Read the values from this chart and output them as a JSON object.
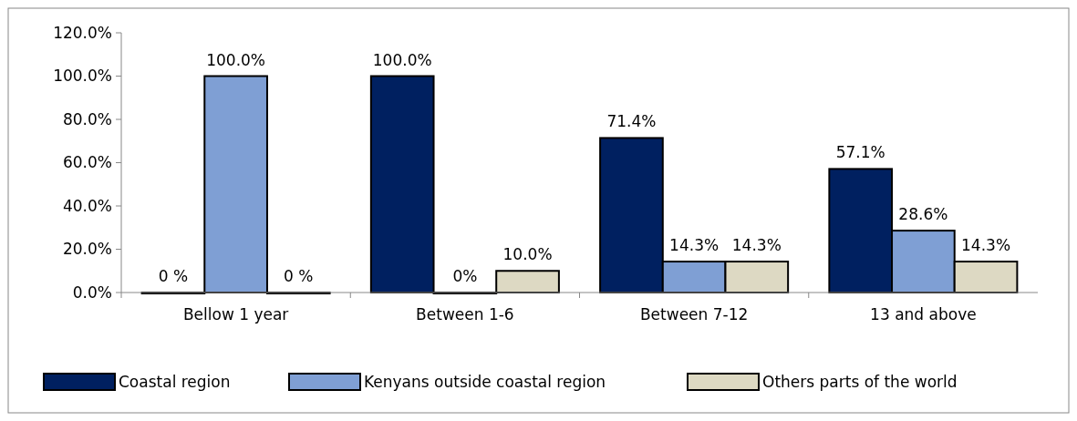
{
  "chart_data": {
    "type": "bar",
    "categories": [
      "Bellow 1 year",
      "Between 1-6",
      "Between 7-12",
      "13 and above"
    ],
    "series": [
      {
        "name": "Coastal region",
        "color": "#002060",
        "values": [
          0,
          100,
          71.4,
          57.1
        ],
        "value_labels": [
          "0 %",
          "100.0%",
          "71.4%",
          "57.1%"
        ]
      },
      {
        "name": "Kenyans outside coastal region",
        "color": "#7f9fd4",
        "values": [
          100,
          0,
          14.3,
          28.6
        ],
        "value_labels": [
          "100.0%",
          "0%",
          "14.3%",
          "28.6%"
        ]
      },
      {
        "name": "Others parts of the world",
        "color": "#ddd9c3",
        "values": [
          0,
          10,
          14.3,
          14.3
        ],
        "value_labels": [
          "0 %",
          "10.0%",
          "14.3%",
          "14.3%"
        ]
      }
    ],
    "ylim": [
      0,
      120
    ],
    "yticks": [
      {
        "value": 0,
        "label": "0.0%"
      },
      {
        "value": 20,
        "label": "20.0%"
      },
      {
        "value": 40,
        "label": "40.0%"
      },
      {
        "value": 60,
        "label": "60.0%"
      },
      {
        "value": 80,
        "label": "80.0%"
      },
      {
        "value": 100,
        "label": "100.0%"
      },
      {
        "value": 120,
        "label": "120.0%"
      }
    ],
    "grid": false,
    "legend": "bottom"
  }
}
